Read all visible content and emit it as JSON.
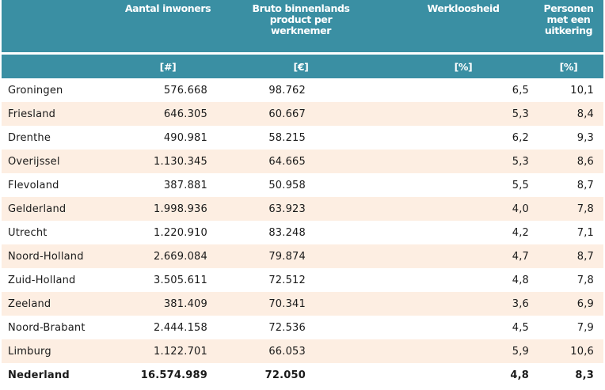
{
  "headers": {
    "region": "",
    "inhabitants": "Aantal inwoners",
    "gdp": "Bruto binnenlands product per werknemer",
    "unemployment": "Werkloosheid",
    "benefits": "Personen met een uitkering"
  },
  "units": {
    "region": "",
    "inhabitants": "[#]",
    "gdp": "[€]",
    "unemployment": "[%]",
    "benefits": "[%]"
  },
  "rows": [
    {
      "name": "Groningen",
      "inhabitants": "576.668",
      "gdp": "98.762",
      "unemployment": "6,5",
      "benefits": "10,1"
    },
    {
      "name": "Friesland",
      "inhabitants": "646.305",
      "gdp": "60.667",
      "unemployment": "5,3",
      "benefits": "8,4"
    },
    {
      "name": "Drenthe",
      "inhabitants": "490.981",
      "gdp": "58.215",
      "unemployment": "6,2",
      "benefits": "9,3"
    },
    {
      "name": "Overijssel",
      "inhabitants": "1.130.345",
      "gdp": "64.665",
      "unemployment": "5,3",
      "benefits": "8,6"
    },
    {
      "name": "Flevoland",
      "inhabitants": "387.881",
      "gdp": "50.958",
      "unemployment": "5,5",
      "benefits": "8,7"
    },
    {
      "name": "Gelderland",
      "inhabitants": "1.998.936",
      "gdp": "63.923",
      "unemployment": "4,0",
      "benefits": "7,8"
    },
    {
      "name": "Utrecht",
      "inhabitants": "1.220.910",
      "gdp": "83.248",
      "unemployment": "4,2",
      "benefits": "7,1"
    },
    {
      "name": "Noord-Holland",
      "inhabitants": "2.669.084",
      "gdp": "79.874",
      "unemployment": "4,7",
      "benefits": "8,7"
    },
    {
      "name": "Zuid-Holland",
      "inhabitants": "3.505.611",
      "gdp": "72.512",
      "unemployment": "4,8",
      "benefits": "7,8"
    },
    {
      "name": "Zeeland",
      "inhabitants": "381.409",
      "gdp": "70.341",
      "unemployment": "3,6",
      "benefits": "6,9"
    },
    {
      "name": "Noord-Brabant",
      "inhabitants": "2.444.158",
      "gdp": "72.536",
      "unemployment": "4,5",
      "benefits": "7,9"
    },
    {
      "name": "Limburg",
      "inhabitants": "1.122.701",
      "gdp": "66.053",
      "unemployment": "5,9",
      "benefits": "10,6"
    }
  ],
  "total": {
    "name": "Nederland",
    "inhabitants": "16.574.989",
    "gdp": "72.050",
    "unemployment": "4,8",
    "benefits": "8,3"
  },
  "colors": {
    "header": "#3a8fa3",
    "stripe": "#fdeee2"
  }
}
